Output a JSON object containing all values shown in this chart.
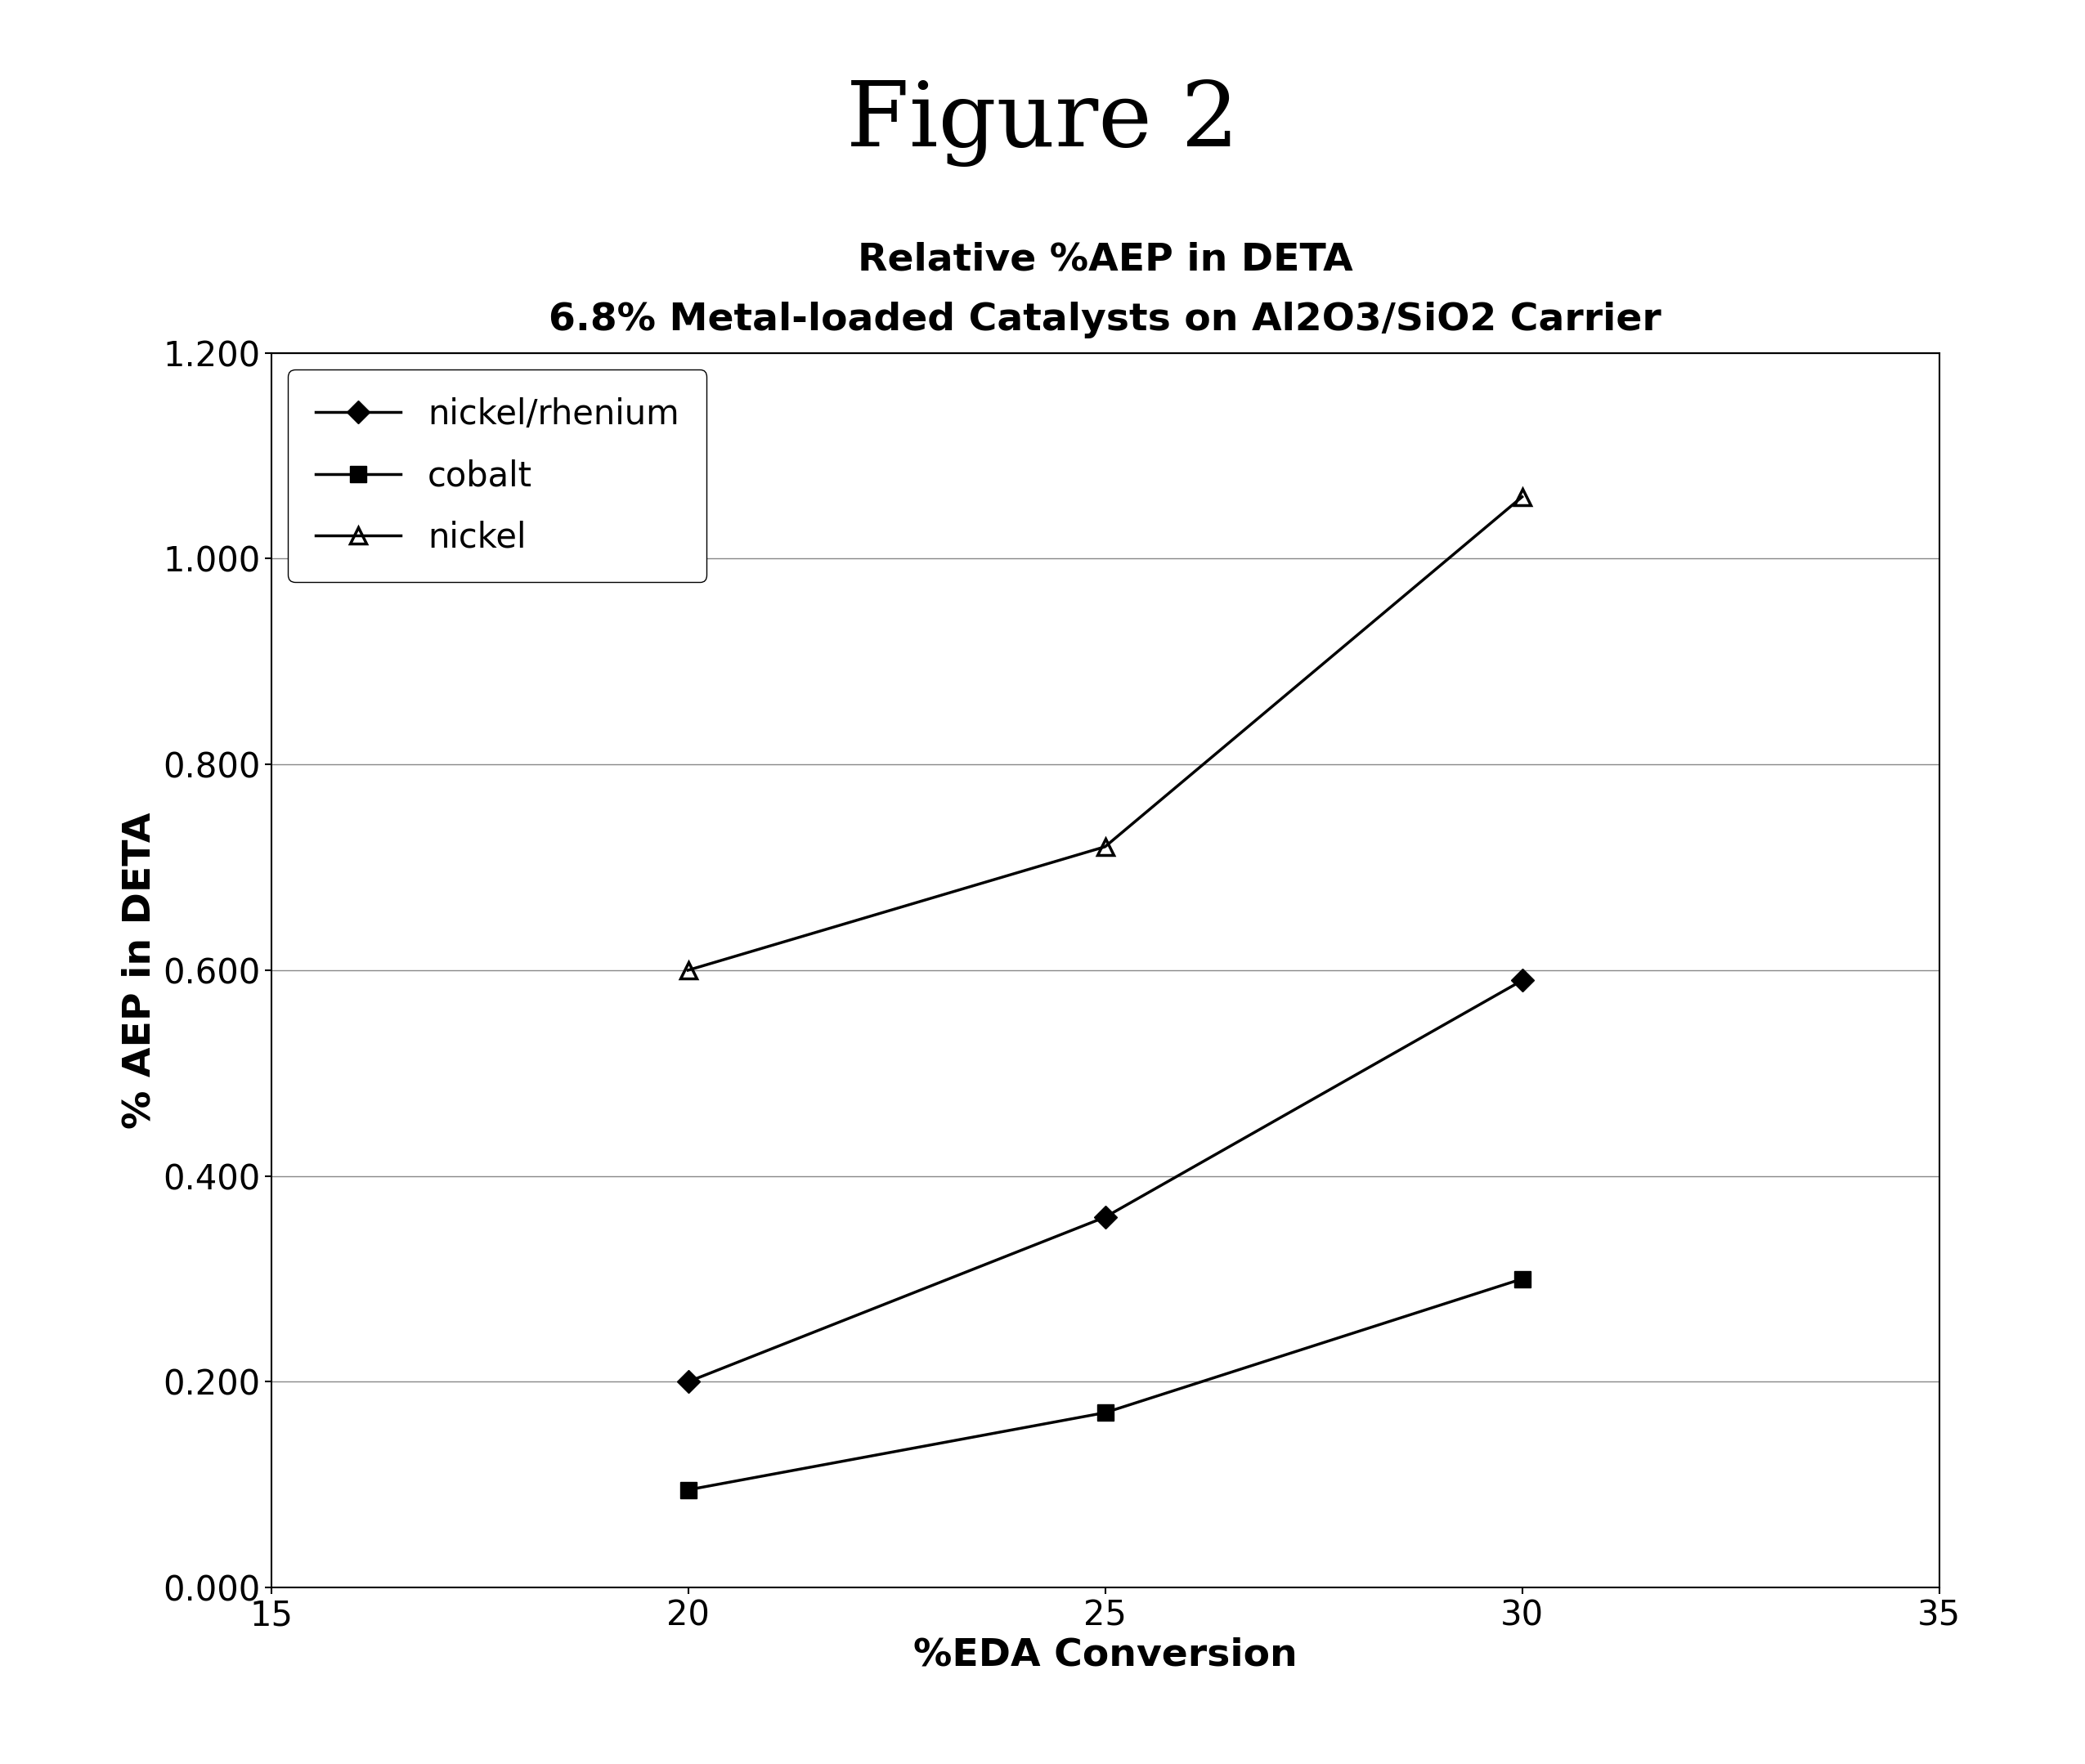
{
  "figure_title": "Figure 2",
  "chart_title_line1": "Relative %AEP in DETA",
  "chart_title_line2": "6.8% Metal-loaded Catalysts on Al2O3/SiO2 Carrier",
  "xlabel": "%EDA Conversion",
  "ylabel": "% AEP in DETA",
  "xlim": [
    15,
    35
  ],
  "ylim": [
    0.0,
    1.2
  ],
  "xticks": [
    15,
    20,
    25,
    30,
    35
  ],
  "yticks": [
    0.0,
    0.2,
    0.4,
    0.6,
    0.8,
    1.0,
    1.2
  ],
  "series": [
    {
      "label": "nickel/rhenium",
      "x": [
        20,
        25,
        30
      ],
      "y": [
        0.2,
        0.36,
        0.59
      ],
      "color": "#000000",
      "marker": "D",
      "marker_size": 14,
      "linewidth": 2.5,
      "fillstyle": "full"
    },
    {
      "label": "cobalt",
      "x": [
        20,
        25,
        30
      ],
      "y": [
        0.095,
        0.17,
        0.3
      ],
      "color": "#000000",
      "marker": "s",
      "marker_size": 14,
      "linewidth": 2.5,
      "fillstyle": "full"
    },
    {
      "label": "nickel",
      "x": [
        20,
        25,
        30
      ],
      "y": [
        0.6,
        0.72,
        1.06
      ],
      "color": "#000000",
      "marker": "^",
      "marker_size": 14,
      "linewidth": 2.5,
      "fillstyle": "none"
    }
  ],
  "background_color": "#ffffff",
  "grid_color": "#888888",
  "figure_title_fontsize": 80,
  "chart_title_fontsize": 34,
  "axis_label_fontsize": 34,
  "tick_fontsize": 30,
  "legend_fontsize": 30
}
